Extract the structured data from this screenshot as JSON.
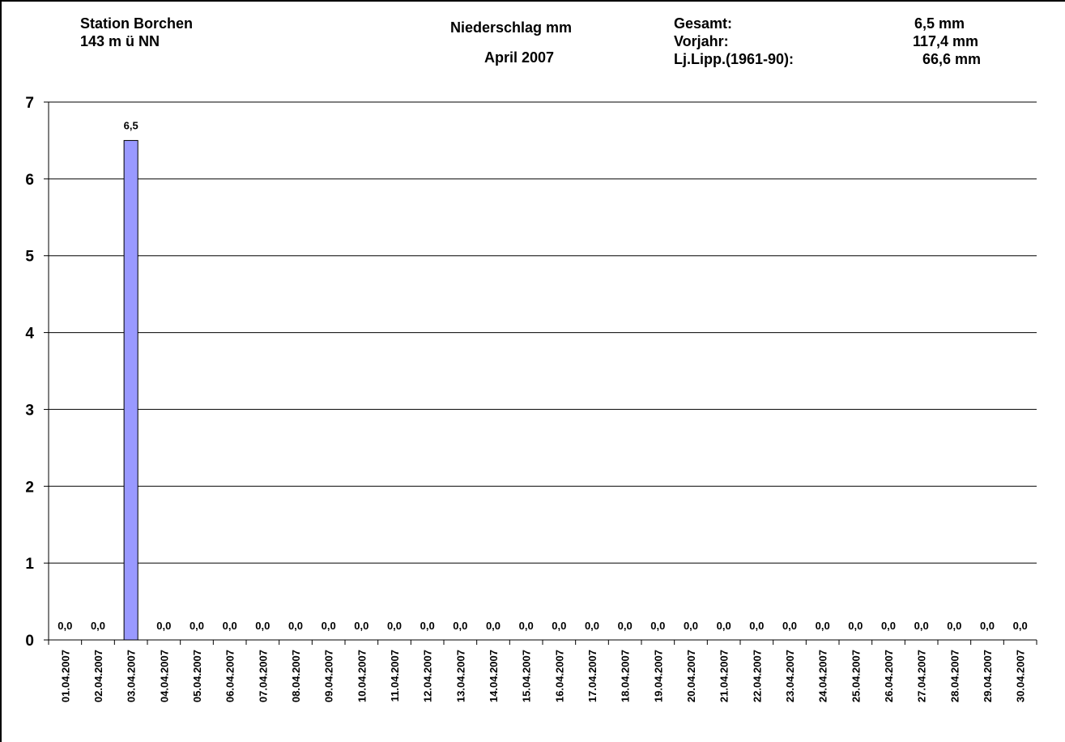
{
  "header": {
    "station_name": "Station Borchen",
    "station_altitude": "143 m ü NN",
    "measure": "Niederschlag mm",
    "period": "April 2007",
    "summary": [
      {
        "label": "Gesamt:",
        "value": "6,5 mm"
      },
      {
        "label": "Vorjahr:",
        "value": "117,4 mm"
      },
      {
        "label": "Lj.Lipp.(1961-90):",
        "value": "66,6 mm"
      }
    ]
  },
  "colors": {
    "bar_fill": "#9999FF",
    "bar_stroke": "#000000",
    "grid": "#000000"
  },
  "chart_data": {
    "type": "bar",
    "title": "",
    "xlabel": "",
    "ylabel": "",
    "ylim": [
      0,
      7
    ],
    "yticks": [
      0,
      1,
      2,
      3,
      4,
      5,
      6,
      7
    ],
    "grid": true,
    "legend": "none",
    "categories": [
      "01.04.2007",
      "02.04.2007",
      "03.04.2007",
      "04.04.2007",
      "05.04.2007",
      "06.04.2007",
      "07.04.2007",
      "08.04.2007",
      "09.04.2007",
      "10.04.2007",
      "11.04.2007",
      "12.04.2007",
      "13.04.2007",
      "14.04.2007",
      "15.04.2007",
      "16.04.2007",
      "17.04.2007",
      "18.04.2007",
      "19.04.2007",
      "20.04.2007",
      "21.04.2007",
      "22.04.2007",
      "23.04.2007",
      "24.04.2007",
      "25.04.2007",
      "26.04.2007",
      "27.04.2007",
      "28.04.2007",
      "29.04.2007",
      "30.04.2007"
    ],
    "values": [
      0,
      0,
      6.5,
      0,
      0,
      0,
      0,
      0,
      0,
      0,
      0,
      0,
      0,
      0,
      0,
      0,
      0,
      0,
      0,
      0,
      0,
      0,
      0,
      0,
      0,
      0,
      0,
      0,
      0,
      0
    ],
    "data_labels": [
      "0,0",
      "0,0",
      "6,5",
      "0,0",
      "0,0",
      "0,0",
      "0,0",
      "0,0",
      "0,0",
      "0,0",
      "0,0",
      "0,0",
      "0,0",
      "0,0",
      "0,0",
      "0,0",
      "0,0",
      "0,0",
      "0,0",
      "0,0",
      "0,0",
      "0,0",
      "0,0",
      "0,0",
      "0,0",
      "0,0",
      "0,0",
      "0,0",
      "0,0",
      "0,0"
    ]
  }
}
